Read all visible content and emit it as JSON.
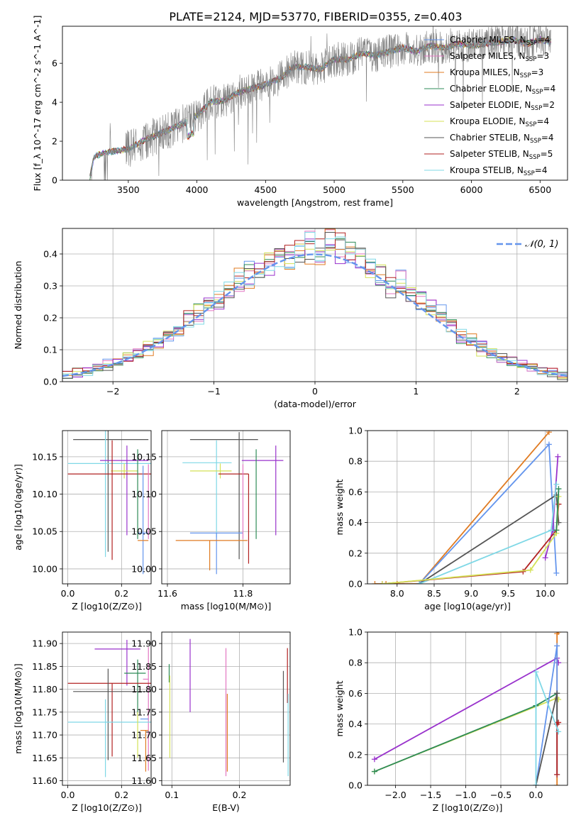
{
  "title": "PLATE=2124, MJD=53770, FIBERID=0355, z=0.403",
  "chart_data": [
    {
      "id": "spectrum",
      "type": "line",
      "xlabel": "wavelength [Angstrom, rest frame]",
      "ylabel": "Flux [f_λ 10^-17 erg cm^-2 s^-1 A^-1]",
      "xlim": [
        3020,
        6700
      ],
      "ylim": [
        0,
        7.9
      ],
      "xticks": [
        3500,
        4000,
        4500,
        5000,
        5500,
        6000,
        6500
      ],
      "yticks": [
        0,
        2,
        4,
        6
      ],
      "grid": false,
      "legend_position": "top-right",
      "legend": [
        {
          "name": "Chabrier MILES",
          "nssp": "4",
          "color": "#6495ed"
        },
        {
          "name": "Salpeter MILES",
          "nssp": "3",
          "color": "#e377c2"
        },
        {
          "name": "Kroupa MILES",
          "nssp": "3",
          "color": "#e07b22"
        },
        {
          "name": "Chabrier ELODIE",
          "nssp": "4",
          "color": "#2e8b57"
        },
        {
          "name": "Salpeter ELODIE",
          "nssp": "2",
          "color": "#9932cc"
        },
        {
          "name": "Kroupa ELODIE",
          "nssp": "4",
          "color": "#d4e157"
        },
        {
          "name": "Chabrier STELIB",
          "nssp": "4",
          "color": "#555555"
        },
        {
          "name": "Salpeter STELIB",
          "nssp": "5",
          "color": "#b22222"
        },
        {
          "name": "Kroupa STELIB",
          "nssp": "4",
          "color": "#7fd8e6"
        }
      ],
      "continuum": {
        "x": [
          3220,
          3250,
          3300,
          3400,
          3500,
          3600,
          3700,
          3800,
          3900,
          3950,
          4000,
          4100,
          4200,
          4300,
          4400,
          4500,
          4600,
          4700,
          4800,
          4900,
          5000,
          5100,
          5200,
          5300,
          5400,
          5500,
          5600,
          5700,
          5800,
          5900,
          6000,
          6100,
          6200,
          6300,
          6400,
          6500,
          6580
        ],
        "y": [
          0.1,
          1.2,
          1.35,
          1.5,
          1.6,
          2.0,
          2.3,
          2.6,
          2.9,
          3.1,
          3.3,
          4.0,
          4.1,
          4.5,
          4.7,
          4.9,
          5.2,
          5.8,
          5.8,
          5.7,
          6.2,
          6.2,
          6.5,
          6.4,
          6.6,
          6.8,
          6.6,
          6.9,
          6.8,
          7.0,
          6.9,
          7.0,
          7.1,
          7.2,
          7.0,
          7.2,
          7.1
        ]
      }
    },
    {
      "id": "residuals",
      "type": "line",
      "xlabel": "(data-model)/error",
      "ylabel": "Normed distribution",
      "xlim": [
        -2.5,
        2.5
      ],
      "ylim": [
        0,
        0.48
      ],
      "xticks": [
        -2,
        -1,
        0,
        1,
        2
      ],
      "yticks": [
        0.0,
        0.1,
        0.2,
        0.3,
        0.4
      ],
      "grid": true,
      "legend_position": "top-right",
      "legend": [
        {
          "name": "𝒩(0, 1)",
          "color": "#6495ed"
        }
      ],
      "gaussian": {
        "mean": 0,
        "sigma": 1
      },
      "histogram": {
        "bin_width": 0.1,
        "x_start": -2.5,
        "bins": 50
      }
    },
    {
      "id": "age-vs-Z",
      "type": "scatter",
      "xlabel": "Z [log10(Z/Z⊙)]",
      "ylabel": "age  [log10(age/yr)]",
      "xlim": [
        -0.02,
        0.31
      ],
      "ylim": [
        9.98,
        10.185
      ],
      "xticks": [
        0.0,
        0.2
      ],
      "yticks": [
        10.0,
        10.05,
        10.1,
        10.15
      ],
      "grid": true,
      "errorbars": [
        {
          "color": "#555555",
          "x": 0.15,
          "xerr": [
            0.13,
            0.15
          ],
          "y": 10.173,
          "yerr": [
            0.15,
            0.02
          ]
        },
        {
          "color": "#7fd8e6",
          "x": 0.14,
          "xerr": [
            0.14,
            0.17
          ],
          "y": 10.141,
          "yerr": [
            0.125,
            0.045
          ]
        },
        {
          "color": "#9932cc",
          "x": 0.22,
          "xerr": [
            0.1,
            0.08
          ],
          "y": 10.145,
          "yerr": [
            0.1,
            0.02
          ]
        },
        {
          "color": "#d4e157",
          "x": 0.21,
          "xerr": [
            0.05,
            0.05
          ],
          "y": 10.131,
          "yerr": [
            0.01,
            0.01
          ]
        },
        {
          "color": "#b22222",
          "x": 0.165,
          "xerr": [
            0.165,
            0.15
          ],
          "y": 10.127,
          "yerr": [
            0.115,
            0.045
          ]
        },
        {
          "color": "#2e8b57",
          "x": 0.26,
          "xerr": [
            0.0,
            0.0
          ],
          "y": 10.1,
          "yerr": [
            0.06,
            0.06
          ]
        },
        {
          "color": "#6495ed",
          "x": 0.28,
          "xerr": [
            0.02,
            0.02
          ],
          "y": 10.048,
          "yerr": [
            0.055,
            0.09
          ]
        },
        {
          "color": "#e07b22",
          "x": 0.29,
          "xerr": [
            0.03,
            0.01
          ],
          "y": 10.038,
          "yerr": [
            0.0,
            0.0
          ]
        },
        {
          "color": "#e377c2",
          "x": 0.3,
          "xerr": [
            0.0,
            0.0
          ],
          "y": 10.09,
          "yerr": [
            0.05,
            0.05
          ]
        }
      ]
    },
    {
      "id": "age-vs-mass",
      "type": "scatter",
      "xlabel": "mass [log10(M/M⊙)]",
      "ylabel": "",
      "xlim": [
        11.585,
        11.925
      ],
      "ylim": [
        9.98,
        10.185
      ],
      "xticks": [
        11.6,
        11.8
      ],
      "yticks": [
        10.0,
        10.05,
        10.1,
        10.15
      ],
      "grid": true,
      "errorbars": [
        {
          "color": "#555555",
          "x": 11.79,
          "xerr": [
            0.13,
            0.05
          ],
          "y": 10.173,
          "yerr": [
            0.16,
            0.01
          ]
        },
        {
          "color": "#7fd8e6",
          "x": 11.73,
          "xerr": [
            0.09,
            0.04
          ],
          "y": 10.142,
          "yerr": [
            0.1,
            0.03
          ]
        },
        {
          "color": "#9932cc",
          "x": 11.887,
          "xerr": [
            0.09,
            0.02
          ],
          "y": 10.145,
          "yerr": [
            0.1,
            0.02
          ]
        },
        {
          "color": "#d4e157",
          "x": 11.74,
          "xerr": [
            0.08,
            0.03
          ],
          "y": 10.131,
          "yerr": [
            0.01,
            0.01
          ]
        },
        {
          "color": "#b22222",
          "x": 11.815,
          "xerr": [
            0.08,
            0.0
          ],
          "y": 10.127,
          "yerr": [
            0.12,
            0.0
          ]
        },
        {
          "color": "#2e8b57",
          "x": 11.835,
          "xerr": [
            0.0,
            0.0
          ],
          "y": 10.1,
          "yerr": [
            0.06,
            0.06
          ]
        },
        {
          "color": "#6495ed",
          "x": 11.73,
          "xerr": [
            0.07,
            0.07
          ],
          "y": 10.048,
          "yerr": [
            0.055,
            0.0
          ]
        },
        {
          "color": "#e07b22",
          "x": 11.712,
          "xerr": [
            0.09,
            0.1
          ],
          "y": 10.038,
          "yerr": [
            0.04,
            0.0
          ]
        },
        {
          "color": "#e377c2",
          "x": 11.8,
          "xerr": [
            0.0,
            0.0
          ],
          "y": 10.09,
          "yerr": [
            0.05,
            0.05
          ]
        }
      ]
    },
    {
      "id": "mass-weight-vs-age",
      "type": "line",
      "xlabel": "age  [log10(age/yr)]",
      "ylabel": "mass weight",
      "xlim": [
        7.6,
        10.3
      ],
      "ylim": [
        0,
        1.0
      ],
      "xticks": [
        8.0,
        8.5,
        9.0,
        9.5,
        10.0
      ],
      "yticks": [
        0.0,
        0.2,
        0.4,
        0.6,
        0.8,
        1.0
      ],
      "grid": true,
      "series": [
        {
          "color": "#e07b22",
          "x": [
            7.7,
            7.85,
            8.0,
            8.3,
            10.05
          ],
          "y": [
            0.0,
            0.0,
            0.0,
            0.0,
            0.99
          ]
        },
        {
          "color": "#6495ed",
          "x": [
            8.3,
            10.05,
            10.15
          ],
          "y": [
            0.0,
            0.91,
            0.07
          ]
        },
        {
          "color": "#555555",
          "x": [
            8.3,
            10.15,
            10.18
          ],
          "y": [
            0.0,
            0.58,
            0.4
          ]
        },
        {
          "color": "#9932cc",
          "x": [
            10.0,
            10.1,
            10.17
          ],
          "y": [
            0.17,
            0.35,
            0.83
          ]
        },
        {
          "color": "#7fd8e6",
          "x": [
            8.3,
            10.08,
            10.15
          ],
          "y": [
            0.0,
            0.35,
            0.65
          ]
        },
        {
          "color": "#b22222",
          "x": [
            7.8,
            9.7,
            10.15,
            10.18
          ],
          "y": [
            0.0,
            0.08,
            0.35,
            0.52
          ]
        },
        {
          "color": "#d4e157",
          "x": [
            7.8,
            9.8,
            10.15,
            10.18
          ],
          "y": [
            0.0,
            0.09,
            0.33,
            0.57
          ]
        },
        {
          "color": "#2e8b57",
          "x": [
            10.15,
            10.18
          ],
          "y": [
            0.35,
            0.62
          ]
        }
      ]
    },
    {
      "id": "mass-vs-Z",
      "type": "scatter",
      "xlabel": "Z [log10(Z/Z⊙)]",
      "ylabel": "mass [log10(M/M⊙)]",
      "xlim": [
        -0.02,
        0.31
      ],
      "ylim": [
        11.59,
        11.925
      ],
      "xticks": [
        0.0,
        0.2
      ],
      "yticks": [
        11.6,
        11.65,
        11.7,
        11.75,
        11.8,
        11.85,
        11.9
      ],
      "grid": true,
      "errorbars": [
        {
          "color": "#9932cc",
          "x": 0.22,
          "xerr": [
            0.12,
            0.05
          ],
          "y": 11.888,
          "yerr": [
            0.08,
            0.02
          ]
        },
        {
          "color": "#2e8b57",
          "x": 0.26,
          "xerr": [
            0.05,
            0.03
          ],
          "y": 11.835,
          "yerr": [
            0.09,
            0.03
          ]
        },
        {
          "color": "#e377c2",
          "x": 0.3,
          "xerr": [
            0.02,
            0.0
          ],
          "y": 11.822,
          "yerr": [
            0.2,
            0.07
          ]
        },
        {
          "color": "#b22222",
          "x": 0.165,
          "xerr": [
            0.165,
            0.145
          ],
          "y": 11.813,
          "yerr": [
            0.16,
            0.0
          ]
        },
        {
          "color": "#555555",
          "x": 0.15,
          "xerr": [
            0.13,
            0.16
          ],
          "y": 11.795,
          "yerr": [
            0.15,
            0.05
          ]
        },
        {
          "color": "#6495ed",
          "x": 0.29,
          "xerr": [
            0.02,
            0.01
          ],
          "y": 11.735,
          "yerr": [
            0.0,
            0.0
          ]
        },
        {
          "color": "#7fd8e6",
          "x": 0.14,
          "xerr": [
            0.14,
            0.17
          ],
          "y": 11.728,
          "yerr": [
            0.12,
            0.05
          ]
        },
        {
          "color": "#d4e157",
          "x": 0.26,
          "xerr": [
            0.0,
            0.0
          ],
          "y": 11.7,
          "yerr": [
            0.05,
            0.05
          ]
        },
        {
          "color": "#e07b22",
          "x": 0.29,
          "xerr": [
            0.02,
            0.01
          ],
          "y": 11.71,
          "yerr": [
            0.09,
            0.0
          ]
        }
      ]
    },
    {
      "id": "mass-vs-EBV",
      "type": "scatter",
      "xlabel": "E(B-V)",
      "ylabel": "",
      "xlim": [
        0.085,
        0.275
      ],
      "ylim": [
        11.59,
        11.925
      ],
      "xticks": [
        0.1,
        0.2
      ],
      "yticks": [
        11.6,
        11.65,
        11.7,
        11.75,
        11.8,
        11.85,
        11.9
      ],
      "grid": true,
      "errorbars": [
        {
          "color": "#9932cc",
          "x": 0.127,
          "xerr": [
            0,
            0
          ],
          "y": 11.83,
          "yerr": [
            0.08,
            0.08
          ]
        },
        {
          "color": "#2e8b57",
          "x": 0.096,
          "xerr": [
            0,
            0
          ],
          "y": 11.835,
          "yerr": [
            0.02,
            0.02
          ]
        },
        {
          "color": "#d4e157",
          "x": 0.097,
          "xerr": [
            0,
            0
          ],
          "y": 11.73,
          "yerr": [
            0.08,
            0.1
          ]
        },
        {
          "color": "#e377c2",
          "x": 0.18,
          "xerr": [
            0,
            0
          ],
          "y": 11.75,
          "yerr": [
            0.14,
            0.14
          ]
        },
        {
          "color": "#e07b22",
          "x": 0.182,
          "xerr": [
            0,
            0
          ],
          "y": 11.71,
          "yerr": [
            0.09,
            0.08
          ]
        },
        {
          "color": "#555555",
          "x": 0.265,
          "xerr": [
            0,
            0
          ],
          "y": 11.74,
          "yerr": [
            0.1,
            0.1
          ]
        },
        {
          "color": "#b22222",
          "x": 0.271,
          "xerr": [
            0,
            0
          ],
          "y": 11.82,
          "yerr": [
            0.05,
            0.07
          ]
        },
        {
          "color": "#7fd8e6",
          "x": 0.272,
          "xerr": [
            0,
            0
          ],
          "y": 11.7,
          "yerr": [
            0.09,
            0.09
          ]
        }
      ]
    },
    {
      "id": "mass-weight-vs-Z",
      "type": "line",
      "xlabel": "Z [log10(Z/Z⊙)]",
      "ylabel": "mass weight",
      "xlim": [
        -2.4,
        0.45
      ],
      "ylim": [
        0,
        1.0
      ],
      "xticks": [
        -2.0,
        -1.5,
        -1.0,
        -0.5,
        0.0
      ],
      "yticks": [
        0.0,
        0.2,
        0.4,
        0.6,
        0.8,
        1.0
      ],
      "grid": true,
      "series": [
        {
          "color": "#9932cc",
          "x": [
            -2.3,
            0.3,
            0.32
          ],
          "y": [
            0.17,
            0.83,
            0.8
          ]
        },
        {
          "color": "#d4e157",
          "x": [
            -2.3,
            0.3,
            0.32
          ],
          "y": [
            0.09,
            0.57,
            0.56
          ]
        },
        {
          "color": "#2e8b57",
          "x": [
            -2.3,
            0.0,
            0.3
          ],
          "y": [
            0.09,
            0.52,
            0.6
          ]
        },
        {
          "color": "#e07b22",
          "x": [
            0.3,
            0.3,
            0.32
          ],
          "y": [
            0.0,
            0.99,
            1.0
          ]
        },
        {
          "color": "#6495ed",
          "x": [
            0.0,
            0.3,
            0.3
          ],
          "y": [
            0.0,
            0.91,
            0.07
          ]
        },
        {
          "color": "#555555",
          "x": [
            0.0,
            0.3,
            0.3
          ],
          "y": [
            0.0,
            0.6,
            0.4
          ]
        },
        {
          "color": "#b22222",
          "x": [
            0.3,
            0.3,
            0.32
          ],
          "y": [
            0.07,
            0.4,
            0.41
          ]
        },
        {
          "color": "#7fd8e6",
          "x": [
            0.0,
            0.0,
            0.32
          ],
          "y": [
            0.0,
            0.74,
            0.35
          ]
        }
      ]
    }
  ]
}
